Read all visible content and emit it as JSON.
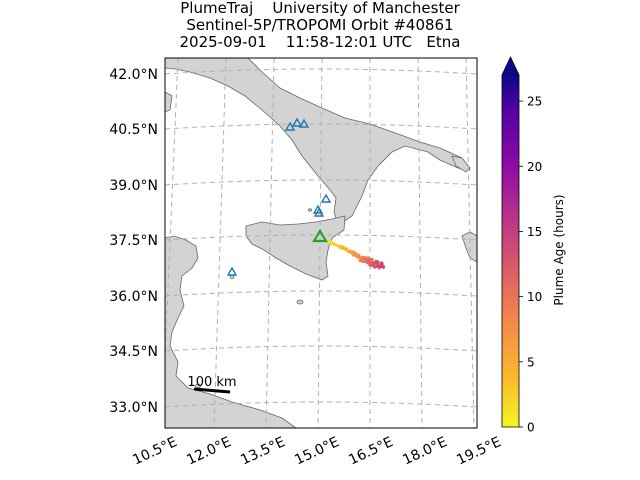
{
  "header": {
    "line1": "PlumeTraj    University of Manchester",
    "line2": "Sentinel-5P/TROPOMI Orbit #40861",
    "line3": "2025-09-01    11:58-12:01 UTC   Etna"
  },
  "map": {
    "lat_ticks": [
      "42.0°N",
      "40.5°N",
      "39.0°N",
      "37.5°N",
      "36.0°N",
      "34.5°N",
      "33.0°N"
    ],
    "lon_ticks": [
      "10.5°E",
      "12.0°E",
      "13.5°E",
      "15.0°E",
      "16.5°E",
      "18.0°E",
      "19.5°E"
    ],
    "scale_bar_label": "100 km",
    "volcano_name": "Etna",
    "colors": {
      "land": "#d3d3d3",
      "sea": "#ffffff",
      "volcano_marker": "#2ca02c",
      "other_volcano_marker": "#1f77b4",
      "gridline": "#b0b0b0"
    },
    "icons": {
      "source_volcano": "triangle-icon",
      "other_volcanoes": "triangle-icon"
    }
  },
  "colorbar": {
    "label": "Plume Age (hours)",
    "ticks": [
      "0",
      "5",
      "10",
      "15",
      "20",
      "25"
    ],
    "range": [
      0,
      27
    ],
    "colormap": "plasma_r",
    "extend": "max"
  }
}
